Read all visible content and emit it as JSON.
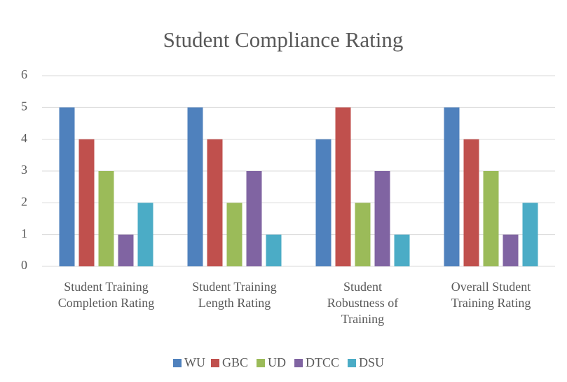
{
  "chart_data": {
    "type": "bar",
    "title": "Student Compliance Rating",
    "categories": [
      "Student Training Completion Rating",
      "Student Training Length Rating",
      "Student Robustness of Training",
      "Overall Student Training Rating"
    ],
    "series": [
      {
        "name": "WU",
        "color": "#4f81bd",
        "values": [
          5,
          5,
          4,
          5
        ]
      },
      {
        "name": "GBC",
        "color": "#c0504d",
        "values": [
          4,
          4,
          5,
          4
        ]
      },
      {
        "name": "UD",
        "color": "#9bbb59",
        "values": [
          3,
          2,
          2,
          3
        ]
      },
      {
        "name": "DTCC",
        "color": "#8064a2",
        "values": [
          1,
          3,
          3,
          1
        ]
      },
      {
        "name": "DSU",
        "color": "#4bacc6",
        "values": [
          2,
          1,
          1,
          2
        ]
      }
    ],
    "ylim": [
      0,
      6
    ],
    "yticks": [
      0,
      1,
      2,
      3,
      4,
      5,
      6
    ],
    "grid": true,
    "legend": "bottom"
  }
}
